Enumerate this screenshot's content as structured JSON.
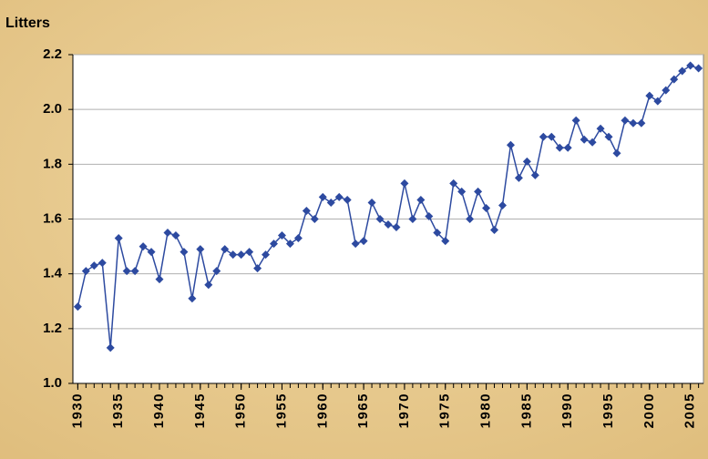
{
  "chart_data": {
    "type": "line",
    "y_label": "Litters",
    "x": [
      1930,
      1931,
      1932,
      1933,
      1934,
      1935,
      1936,
      1937,
      1938,
      1939,
      1940,
      1941,
      1942,
      1943,
      1944,
      1945,
      1946,
      1947,
      1948,
      1949,
      1950,
      1951,
      1952,
      1953,
      1954,
      1955,
      1956,
      1957,
      1958,
      1959,
      1960,
      1961,
      1962,
      1963,
      1964,
      1965,
      1966,
      1967,
      1968,
      1969,
      1970,
      1971,
      1972,
      1973,
      1974,
      1975,
      1976,
      1977,
      1978,
      1979,
      1980,
      1981,
      1982,
      1983,
      1984,
      1985,
      1986,
      1987,
      1988,
      1989,
      1990,
      1991,
      1992,
      1993,
      1994,
      1995,
      1996,
      1997,
      1998,
      1999,
      2000,
      2001,
      2002,
      2003,
      2004,
      2005,
      2006
    ],
    "series": [
      {
        "name": "Litters",
        "color": "#2d4aa0",
        "values": [
          1.28,
          1.41,
          1.43,
          1.44,
          1.13,
          1.53,
          1.41,
          1.41,
          1.5,
          1.48,
          1.38,
          1.55,
          1.54,
          1.48,
          1.31,
          1.49,
          1.36,
          1.41,
          1.49,
          1.47,
          1.47,
          1.48,
          1.42,
          1.47,
          1.51,
          1.54,
          1.51,
          1.53,
          1.63,
          1.6,
          1.68,
          1.66,
          1.68,
          1.67,
          1.51,
          1.52,
          1.66,
          1.6,
          1.58,
          1.57,
          1.73,
          1.6,
          1.67,
          1.61,
          1.55,
          1.52,
          1.73,
          1.7,
          1.6,
          1.7,
          1.64,
          1.56,
          1.65,
          1.87,
          1.75,
          1.81,
          1.76,
          1.9,
          1.9,
          1.86,
          1.86,
          1.96,
          1.89,
          1.88,
          1.93,
          1.9,
          1.84,
          1.96,
          1.95,
          1.95,
          2.05,
          2.03,
          2.07,
          2.11,
          2.14,
          2.16,
          2.15
        ]
      }
    ],
    "xlim": [
      1929.4,
      2006.6
    ],
    "xticks": [
      1930,
      1935,
      1940,
      1945,
      1950,
      1955,
      1960,
      1965,
      1970,
      1975,
      1980,
      1985,
      1990,
      1995,
      2000,
      2005
    ],
    "ylim": [
      1.0,
      2.2
    ],
    "yticks": [
      {
        "value": 1.0,
        "label": "1.0"
      },
      1.2,
      1.4,
      1.6,
      1.8,
      {
        "value": 2.0,
        "label": "2.0"
      },
      2.2
    ],
    "grid": true
  }
}
